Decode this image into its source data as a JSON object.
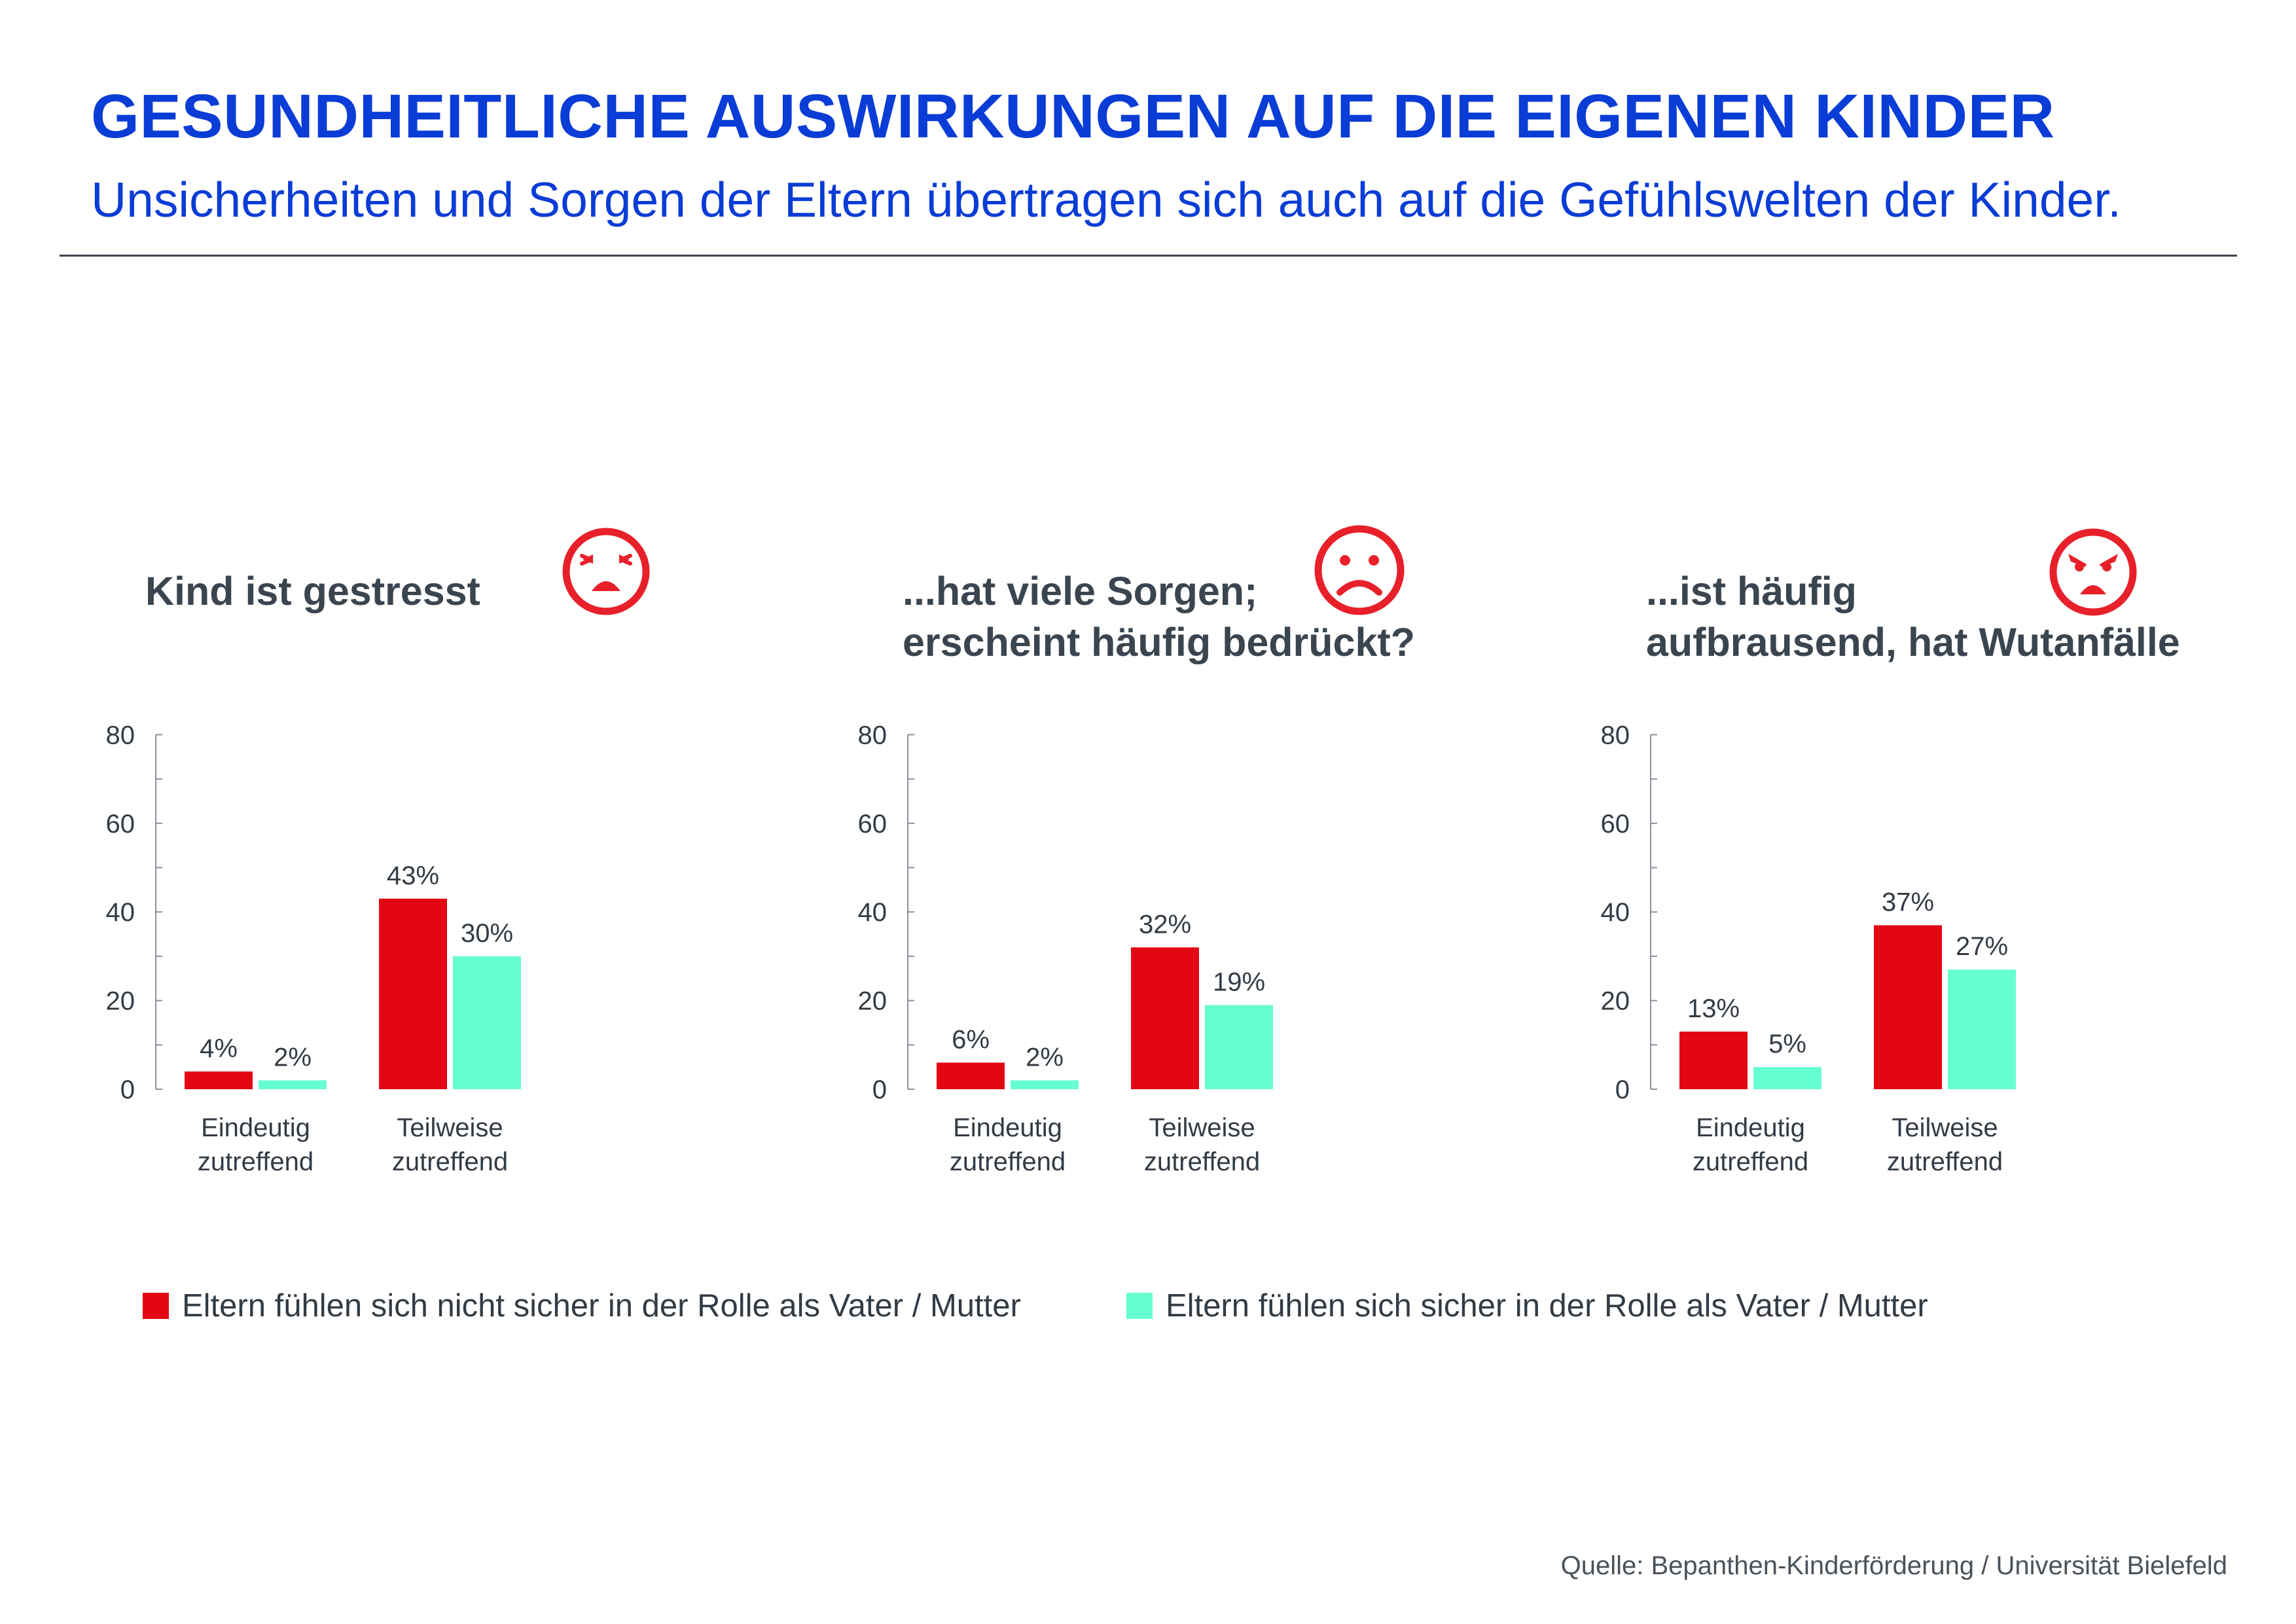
{
  "header": {
    "title": "GESUNDHEITLICHE AUSWIRKUNGEN AUF DIE EIGENEN KINDER",
    "subtitle": "Unsicherheiten und Sorgen der Eltern übertragen sich auch auf die Gefühlswelten der Kinder."
  },
  "panels": [
    {
      "question_line1": "Kind ist gestresst",
      "question_line2": "",
      "icon": "stressed-face-icon"
    },
    {
      "question_line1": "...hat viele Sorgen;",
      "question_line2": "erscheint häufig bedrückt?",
      "icon": "sad-face-icon"
    },
    {
      "question_line1": "...ist häufig",
      "question_line2": "aufbrausend, hat Wutanfälle",
      "icon": "angry-face-icon"
    }
  ],
  "colors": {
    "brand_blue": "#0a3cd6",
    "unsure": "#e30613",
    "confident": "#66ffd1",
    "icon_red": "#e8202a"
  },
  "legend": {
    "unsure": "Eltern fühlen sich nicht sicher in der Rolle als Vater / Mutter",
    "confident": "Eltern fühlen sich sicher in der Rolle als Vater / Mutter"
  },
  "source": "Quelle: Bepanthen-Kinderförderung / Universität Bielefeld",
  "chart_data": [
    {
      "type": "bar",
      "title": "Kind ist gestresst",
      "categories": [
        [
          "Eindeutig",
          "zutreffend"
        ],
        [
          "Teilweise",
          "zutreffend"
        ]
      ],
      "series": [
        {
          "name": "Eltern fühlen sich nicht sicher in der Rolle als Vater / Mutter",
          "values": [
            4,
            43
          ],
          "labels": [
            "4%",
            "43%"
          ]
        },
        {
          "name": "Eltern fühlen sich sicher in der Rolle als Vater / Mutter",
          "values": [
            2,
            30
          ],
          "labels": [
            "2%",
            "30%"
          ]
        }
      ],
      "yticks": [
        "0",
        "20",
        "40",
        "60",
        "80"
      ],
      "ylim": [
        0,
        80
      ],
      "grid": false,
      "legend": "bottom"
    },
    {
      "type": "bar",
      "title": "...hat viele Sorgen; erscheint häufig bedrückt?",
      "categories": [
        [
          "Eindeutig",
          "zutreffend"
        ],
        [
          "Teilweise",
          "zutreffend"
        ]
      ],
      "series": [
        {
          "name": "Eltern fühlen sich nicht sicher in der Rolle als Vater / Mutter",
          "values": [
            6,
            32
          ],
          "labels": [
            "6%",
            "32%"
          ]
        },
        {
          "name": "Eltern fühlen sich sicher in der Rolle als Vater / Mutter",
          "values": [
            2,
            19
          ],
          "labels": [
            "2%",
            "19%"
          ]
        }
      ],
      "yticks": [
        "0",
        "20",
        "40",
        "60",
        "80"
      ],
      "ylim": [
        0,
        80
      ],
      "grid": false,
      "legend": "bottom"
    },
    {
      "type": "bar",
      "title": "...ist häufig aufbrausend, hat Wutanfälle",
      "categories": [
        [
          "Eindeutig",
          "zutreffend"
        ],
        [
          "Teilweise",
          "zutreffend"
        ]
      ],
      "series": [
        {
          "name": "Eltern fühlen sich nicht sicher in der Rolle als Vater / Mutter",
          "values": [
            13,
            37
          ],
          "labels": [
            "13%",
            "37%"
          ]
        },
        {
          "name": "Eltern fühlen sich sicher in der Rolle als Vater / Mutter",
          "values": [
            5,
            27
          ],
          "labels": [
            "5%",
            "27%"
          ]
        }
      ],
      "yticks": [
        "0",
        "20",
        "40",
        "60",
        "80"
      ],
      "ylim": [
        0,
        80
      ],
      "grid": false,
      "legend": "bottom"
    }
  ]
}
